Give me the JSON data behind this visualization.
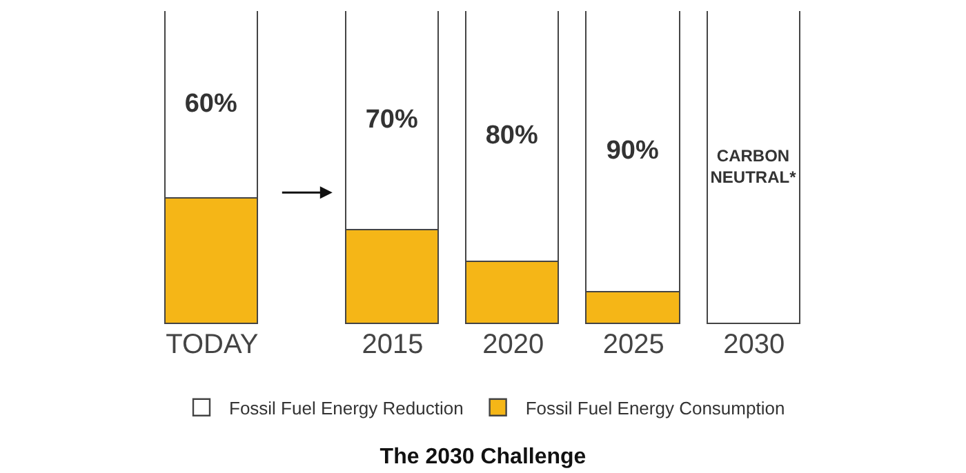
{
  "chart_data": {
    "type": "bar",
    "title": "The 2030 Challenge",
    "categories": [
      "TODAY",
      "2015",
      "2020",
      "2025",
      "2030"
    ],
    "stacked": true,
    "ylim": [
      0,
      100
    ],
    "tick_labels": "x",
    "grid": false,
    "legend": "bottom",
    "series": [
      {
        "name": "Fossil Fuel Energy Consumption",
        "color": "#f5b617",
        "values": [
          40,
          30,
          20,
          10,
          0
        ]
      },
      {
        "name": "Fossil Fuel Energy Reduction",
        "color": "#ffffff",
        "values": [
          60,
          70,
          80,
          90,
          100
        ],
        "value_labels": [
          "60%",
          "70%",
          "80%",
          "90%",
          "CARBON NEUTRAL*"
        ]
      }
    ]
  }
}
